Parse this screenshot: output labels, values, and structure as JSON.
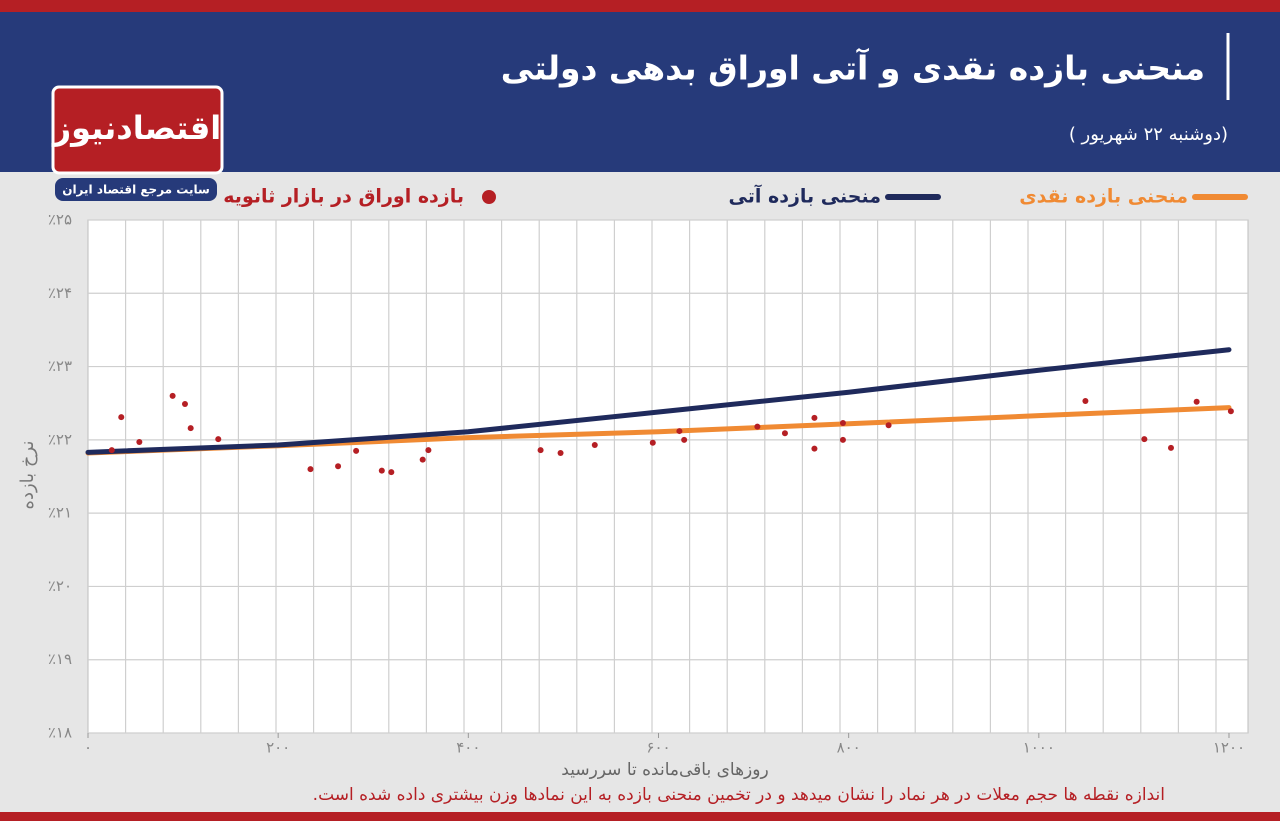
{
  "logo": {
    "name": "اقتصادنیوز",
    "tagline": "سایت مرجع اقتصاد ایران"
  },
  "chart_data": {
    "type": "line",
    "title": "منحنی بازده نقدی و آتی اوراق بدهی دولتی",
    "subtitle": "(دوشنبه ۲۲ شهریور )",
    "x_label": "روزهای باقی‌مانده تا سررسید",
    "y_label": "نرخ بازده",
    "note": "اندازه نقطه ها حجم معلات در هر نماد را نشان میدهد و در تخمین منحنی بازده به این نمادها وزن بیشتری داده شده است.",
    "xlim": [
      0,
      1220
    ],
    "ylim": [
      18,
      25
    ],
    "xticks": [
      {
        "value": 0,
        "label": "۰"
      },
      {
        "value": 200,
        "label": "۲۰۰"
      },
      {
        "value": 400,
        "label": "۴۰۰"
      },
      {
        "value": 600,
        "label": "۶۰۰"
      },
      {
        "value": 800,
        "label": "۸۰۰"
      },
      {
        "value": 1000,
        "label": "۱۰۰۰"
      },
      {
        "value": 1200,
        "label": "۱۲۰۰"
      }
    ],
    "yticks": [
      {
        "value": 18,
        "label": "٪۱۸"
      },
      {
        "value": 19,
        "label": "٪۱۹"
      },
      {
        "value": 20,
        "label": "٪۲۰"
      },
      {
        "value": 21,
        "label": "٪۲۱"
      },
      {
        "value": 22,
        "label": "٪۲۲"
      },
      {
        "value": 23,
        "label": "٪۲۳"
      },
      {
        "value": 24,
        "label": "٪۲۴"
      },
      {
        "value": 25,
        "label": "٪۲۵"
      }
    ],
    "grid": true,
    "series": [
      {
        "name": "منحنی بازده نقدی",
        "type": "line",
        "color": "#f08a33",
        "x": [
          0,
          200,
          400,
          600,
          800,
          1000,
          1200
        ],
        "values": [
          21.82,
          21.92,
          22.03,
          22.11,
          22.22,
          22.33,
          22.44
        ]
      },
      {
        "name": "منحنی بازده آتی",
        "type": "line",
        "color": "#1f2a5c",
        "x": [
          0,
          200,
          400,
          600,
          800,
          1000,
          1200
        ],
        "values": [
          21.83,
          21.93,
          22.11,
          22.38,
          22.65,
          22.95,
          23.23
        ]
      },
      {
        "name": "بازده اوراق در بازار ثانویه",
        "type": "scatter",
        "color": "#b51f24",
        "x": [
          25,
          35,
          54,
          89,
          102,
          108,
          137,
          234,
          263,
          282,
          309,
          319,
          352,
          358,
          476,
          497,
          533,
          594,
          622,
          627,
          704,
          733,
          764,
          764,
          794,
          794,
          842,
          1049,
          1111,
          1139,
          1166,
          1202
        ],
        "values": [
          21.86,
          22.31,
          21.97,
          22.6,
          22.49,
          22.16,
          22.01,
          21.6,
          21.64,
          21.85,
          21.58,
          21.56,
          21.73,
          21.86,
          21.86,
          21.82,
          21.93,
          21.96,
          22.12,
          22.0,
          22.18,
          22.09,
          22.3,
          21.88,
          22.23,
          22.0,
          22.2,
          22.53,
          22.01,
          21.89,
          22.52,
          22.39
        ]
      }
    ]
  }
}
